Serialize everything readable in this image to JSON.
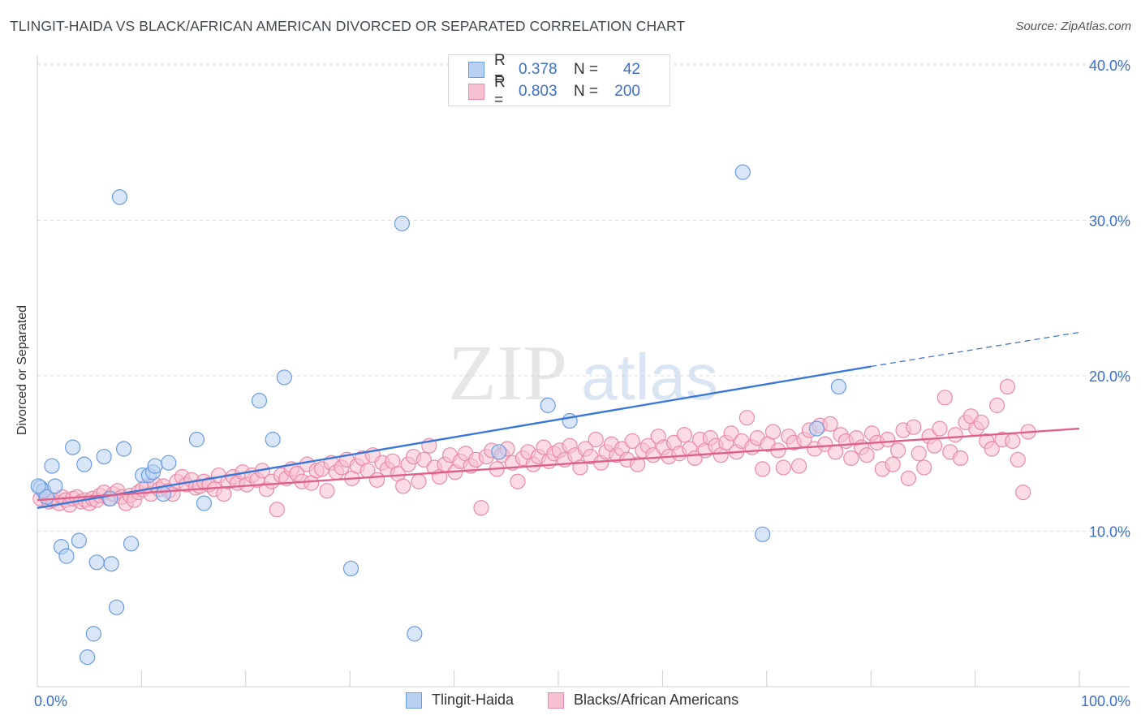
{
  "title": "TLINGIT-HAIDA VS BLACK/AFRICAN AMERICAN DIVORCED OR SEPARATED CORRELATION CHART",
  "source": "Source: ZipAtlas.com",
  "watermark": {
    "zip": "ZIP",
    "atlas": "atlas"
  },
  "legend": {
    "rows": [
      {
        "r_label": "R =",
        "r_value": "0.378",
        "n_label": "N =",
        "n_value": "42",
        "fill": "#b8d1f3",
        "stroke": "#6c9be0"
      },
      {
        "r_label": "R =",
        "r_value": "0.803",
        "n_label": "N =",
        "n_value": "200",
        "fill": "#f7c0d0",
        "stroke": "#e88aa8"
      }
    ]
  },
  "bottom_legend": [
    {
      "label": "Tlingit-Haida",
      "fill": "#b8d1f3",
      "stroke": "#6c9be0"
    },
    {
      "label": "Blacks/African Americans",
      "fill": "#f7c0d0",
      "stroke": "#e88aa8"
    }
  ],
  "chart_data": {
    "type": "scatter",
    "xlabel": "",
    "ylabel": "Divorced or Separated",
    "xlim": [
      0,
      100
    ],
    "ylim": [
      0,
      40
    ],
    "x_tick_labels": [
      "0.0%",
      "100.0%"
    ],
    "y_ticks": [
      10,
      20,
      30,
      40
    ],
    "y_tick_labels": [
      "10.0%",
      "20.0%",
      "30.0%",
      "40.0%"
    ],
    "grid": "horizontal dashed",
    "series": [
      {
        "name": "Tlingit-Haida",
        "color": "#6c9be0",
        "fill": "#b8d1f3",
        "line_color": "#3a78d8",
        "trend": {
          "x0": 0,
          "y0": 11.5,
          "x1": 80,
          "y1": 20.6,
          "dash_to_x": 100,
          "dash_to_y": 22.8
        },
        "points": [
          [
            0.3,
            12.8
          ],
          [
            0.6,
            12.6
          ],
          [
            0.9,
            12.2
          ],
          [
            1.4,
            14.2
          ],
          [
            1.7,
            12.9
          ],
          [
            2.3,
            9.0
          ],
          [
            2.8,
            8.4
          ],
          [
            3.4,
            15.4
          ],
          [
            4.0,
            9.4
          ],
          [
            4.5,
            14.3
          ],
          [
            4.8,
            1.9
          ],
          [
            5.4,
            3.4
          ],
          [
            5.7,
            8.0
          ],
          [
            6.4,
            14.8
          ],
          [
            7.0,
            12.1
          ],
          [
            7.1,
            7.9
          ],
          [
            7.6,
            5.1
          ],
          [
            7.9,
            31.5
          ],
          [
            8.3,
            15.3
          ],
          [
            9.0,
            9.2
          ],
          [
            10.1,
            13.6
          ],
          [
            10.7,
            13.6
          ],
          [
            11.1,
            13.8
          ],
          [
            11.3,
            14.2
          ],
          [
            12.1,
            12.4
          ],
          [
            12.6,
            14.4
          ],
          [
            15.3,
            15.9
          ],
          [
            16.0,
            11.8
          ],
          [
            21.3,
            18.4
          ],
          [
            22.6,
            15.9
          ],
          [
            23.7,
            19.9
          ],
          [
            30.1,
            7.6
          ],
          [
            35.0,
            29.8
          ],
          [
            36.2,
            3.4
          ],
          [
            44.3,
            15.1
          ],
          [
            49.0,
            18.1
          ],
          [
            51.1,
            17.1
          ],
          [
            67.7,
            33.1
          ],
          [
            69.6,
            9.8
          ],
          [
            74.8,
            16.6
          ],
          [
            76.9,
            19.3
          ],
          [
            0.1,
            12.9
          ]
        ]
      },
      {
        "name": "Blacks/African Americans",
        "color": "#e88aa8",
        "fill": "#f7c0d0",
        "line_color": "#e0608c",
        "trend": {
          "x0": 0,
          "y0": 12.0,
          "x1": 100,
          "y1": 16.6
        },
        "points": [
          [
            0.3,
            12.1
          ],
          [
            0.8,
            12.3
          ],
          [
            1.1,
            11.9
          ],
          [
            1.5,
            12.0
          ],
          [
            2.1,
            11.8
          ],
          [
            2.4,
            12.2
          ],
          [
            2.7,
            12.0
          ],
          [
            3.1,
            11.7
          ],
          [
            3.4,
            12.1
          ],
          [
            3.8,
            12.2
          ],
          [
            4.2,
            11.9
          ],
          [
            4.6,
            12.0
          ],
          [
            5.0,
            11.8
          ],
          [
            5.3,
            12.1
          ],
          [
            5.7,
            12.0
          ],
          [
            6.0,
            12.3
          ],
          [
            6.4,
            12.5
          ],
          [
            6.9,
            12.1
          ],
          [
            7.3,
            12.4
          ],
          [
            7.7,
            12.6
          ],
          [
            8.1,
            12.2
          ],
          [
            8.5,
            11.8
          ],
          [
            8.9,
            12.3
          ],
          [
            9.3,
            12.0
          ],
          [
            9.7,
            12.5
          ],
          [
            10.1,
            12.7
          ],
          [
            10.5,
            12.9
          ],
          [
            10.9,
            12.4
          ],
          [
            11.3,
            13.0
          ],
          [
            11.7,
            12.7
          ],
          [
            12.1,
            12.9
          ],
          [
            12.6,
            12.6
          ],
          [
            13.0,
            12.4
          ],
          [
            13.4,
            13.2
          ],
          [
            13.9,
            13.5
          ],
          [
            14.3,
            13.0
          ],
          [
            14.8,
            13.3
          ],
          [
            15.2,
            12.8
          ],
          [
            15.6,
            12.9
          ],
          [
            16.0,
            13.2
          ],
          [
            16.5,
            13.0
          ],
          [
            17.0,
            12.7
          ],
          [
            17.4,
            13.6
          ],
          [
            17.9,
            12.4
          ],
          [
            18.3,
            13.2
          ],
          [
            18.8,
            13.5
          ],
          [
            19.2,
            13.1
          ],
          [
            19.7,
            13.8
          ],
          [
            20.1,
            13.0
          ],
          [
            20.6,
            13.6
          ],
          [
            21.1,
            13.3
          ],
          [
            21.6,
            13.9
          ],
          [
            22.0,
            12.7
          ],
          [
            22.5,
            13.2
          ],
          [
            23.0,
            11.4
          ],
          [
            23.4,
            13.6
          ],
          [
            23.9,
            13.4
          ],
          [
            24.4,
            14.0
          ],
          [
            24.9,
            13.7
          ],
          [
            25.4,
            13.2
          ],
          [
            25.9,
            14.3
          ],
          [
            26.3,
            13.1
          ],
          [
            26.8,
            13.9
          ],
          [
            27.3,
            14.0
          ],
          [
            27.8,
            12.6
          ],
          [
            28.2,
            14.4
          ],
          [
            28.7,
            13.8
          ],
          [
            29.2,
            14.1
          ],
          [
            29.7,
            14.6
          ],
          [
            30.2,
            13.4
          ],
          [
            30.7,
            14.2
          ],
          [
            31.2,
            14.7
          ],
          [
            31.7,
            13.9
          ],
          [
            32.2,
            14.9
          ],
          [
            32.6,
            13.3
          ],
          [
            33.1,
            14.4
          ],
          [
            33.6,
            14.0
          ],
          [
            34.1,
            14.5
          ],
          [
            34.6,
            13.7
          ],
          [
            35.1,
            12.9
          ],
          [
            35.6,
            14.3
          ],
          [
            36.1,
            14.8
          ],
          [
            36.6,
            13.2
          ],
          [
            37.1,
            14.6
          ],
          [
            37.6,
            15.5
          ],
          [
            38.1,
            14.1
          ],
          [
            38.6,
            13.5
          ],
          [
            39.1,
            14.3
          ],
          [
            39.6,
            14.9
          ],
          [
            40.1,
            13.8
          ],
          [
            40.6,
            14.5
          ],
          [
            41.1,
            15.0
          ],
          [
            41.6,
            14.2
          ],
          [
            42.1,
            14.6
          ],
          [
            42.6,
            11.5
          ],
          [
            43.1,
            14.8
          ],
          [
            43.6,
            15.2
          ],
          [
            44.1,
            14.0
          ],
          [
            44.6,
            14.9
          ],
          [
            45.1,
            15.3
          ],
          [
            45.6,
            14.4
          ],
          [
            46.1,
            13.2
          ],
          [
            46.6,
            14.7
          ],
          [
            47.1,
            15.1
          ],
          [
            47.6,
            14.3
          ],
          [
            48.1,
            14.8
          ],
          [
            48.6,
            15.4
          ],
          [
            49.1,
            14.5
          ],
          [
            49.6,
            15.0
          ],
          [
            50.1,
            15.2
          ],
          [
            50.6,
            14.6
          ],
          [
            51.1,
            15.5
          ],
          [
            51.6,
            14.9
          ],
          [
            52.1,
            14.1
          ],
          [
            52.6,
            15.3
          ],
          [
            53.1,
            14.8
          ],
          [
            53.6,
            15.9
          ],
          [
            54.1,
            14.4
          ],
          [
            54.6,
            15.1
          ],
          [
            55.1,
            15.6
          ],
          [
            55.6,
            14.9
          ],
          [
            56.1,
            15.3
          ],
          [
            56.6,
            14.6
          ],
          [
            57.1,
            15.8
          ],
          [
            57.6,
            14.3
          ],
          [
            58.1,
            15.2
          ],
          [
            58.6,
            15.5
          ],
          [
            59.1,
            14.9
          ],
          [
            59.6,
            16.1
          ],
          [
            60.1,
            15.4
          ],
          [
            60.6,
            14.8
          ],
          [
            61.1,
            15.7
          ],
          [
            61.6,
            15.0
          ],
          [
            62.1,
            16.2
          ],
          [
            62.6,
            15.3
          ],
          [
            63.1,
            14.7
          ],
          [
            63.6,
            15.9
          ],
          [
            64.1,
            15.2
          ],
          [
            64.6,
            16.0
          ],
          [
            65.1,
            15.5
          ],
          [
            65.6,
            14.9
          ],
          [
            66.1,
            15.7
          ],
          [
            66.6,
            16.3
          ],
          [
            67.1,
            15.1
          ],
          [
            67.6,
            15.8
          ],
          [
            68.1,
            17.3
          ],
          [
            68.6,
            15.4
          ],
          [
            69.1,
            16.0
          ],
          [
            69.6,
            14.0
          ],
          [
            70.1,
            15.6
          ],
          [
            70.6,
            16.4
          ],
          [
            71.1,
            15.2
          ],
          [
            71.6,
            14.1
          ],
          [
            72.1,
            16.1
          ],
          [
            72.6,
            15.7
          ],
          [
            73.1,
            14.2
          ],
          [
            73.6,
            15.9
          ],
          [
            74.1,
            16.5
          ],
          [
            74.6,
            15.3
          ],
          [
            75.1,
            16.8
          ],
          [
            75.6,
            15.6
          ],
          [
            76.1,
            16.9
          ],
          [
            76.6,
            15.1
          ],
          [
            77.1,
            16.2
          ],
          [
            77.6,
            15.8
          ],
          [
            78.1,
            14.7
          ],
          [
            78.6,
            16.0
          ],
          [
            79.1,
            15.4
          ],
          [
            79.6,
            14.9
          ],
          [
            80.1,
            16.3
          ],
          [
            80.6,
            15.7
          ],
          [
            81.1,
            14.0
          ],
          [
            81.6,
            15.9
          ],
          [
            82.1,
            14.3
          ],
          [
            82.6,
            15.2
          ],
          [
            83.1,
            16.5
          ],
          [
            83.6,
            13.4
          ],
          [
            84.1,
            16.7
          ],
          [
            84.6,
            15.0
          ],
          [
            85.1,
            14.1
          ],
          [
            85.6,
            16.1
          ],
          [
            86.1,
            15.5
          ],
          [
            86.6,
            16.6
          ],
          [
            87.1,
            18.6
          ],
          [
            87.6,
            15.1
          ],
          [
            88.1,
            16.2
          ],
          [
            88.6,
            14.7
          ],
          [
            89.1,
            17.0
          ],
          [
            89.6,
            17.4
          ],
          [
            90.1,
            16.6
          ],
          [
            90.6,
            17.0
          ],
          [
            91.1,
            15.8
          ],
          [
            91.6,
            15.3
          ],
          [
            92.1,
            18.1
          ],
          [
            92.6,
            15.9
          ],
          [
            93.1,
            19.3
          ],
          [
            93.6,
            15.8
          ],
          [
            94.1,
            14.6
          ],
          [
            94.6,
            12.5
          ],
          [
            95.1,
            16.4
          ]
        ]
      }
    ]
  }
}
